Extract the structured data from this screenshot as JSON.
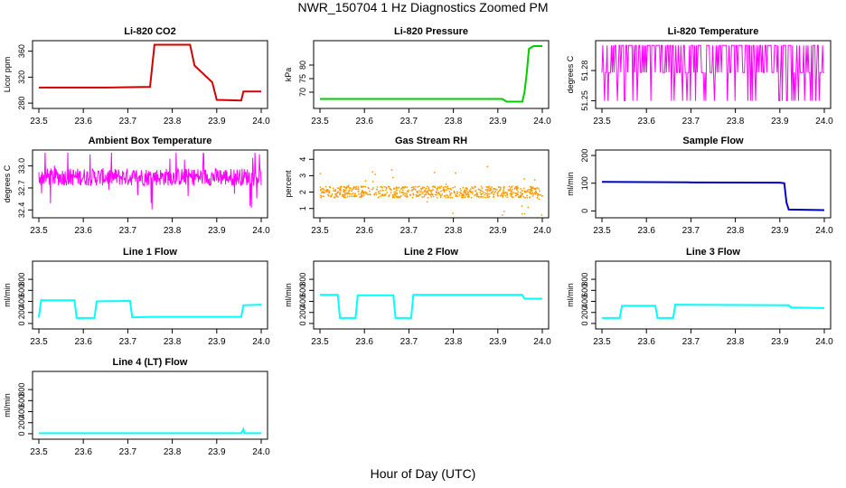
{
  "figure": {
    "title": "NWR_150704  1 Hz Diagnostics Zoomed PM",
    "xlabel": "Hour of Day (UTC)"
  },
  "chart_data": [
    {
      "id": "co2",
      "type": "line",
      "title": "Li-820 CO2",
      "ylabel": "Licor ppm",
      "color": "#d00000",
      "style": "step",
      "xlim": [
        23.5,
        24.0
      ],
      "ylim": [
        276,
        372
      ],
      "xticks": [
        "23.5",
        "23.6",
        "23.7",
        "23.8",
        "23.9",
        "24.0"
      ],
      "yticks": [
        "280",
        "320",
        "360"
      ],
      "series": [
        {
          "x": [
            23.5,
            23.6,
            23.65,
            23.75,
            23.76,
            23.84,
            23.85,
            23.89,
            23.9,
            23.955,
            23.96,
            24.0
          ],
          "y": [
            304,
            304,
            304,
            305,
            370,
            370,
            338,
            312,
            285,
            284,
            298,
            298
          ]
        }
      ]
    },
    {
      "id": "pressure",
      "type": "line",
      "title": "Li-820 Pressure",
      "ylabel": "kPa",
      "color": "#00cc00",
      "style": "step",
      "xlim": [
        23.5,
        24.0
      ],
      "ylim": [
        65,
        88
      ],
      "xticks": [
        "23.5",
        "23.6",
        "23.7",
        "23.8",
        "23.9",
        "24.0"
      ],
      "yticks": [
        "70",
        "75",
        "80"
      ],
      "series": [
        {
          "x": [
            23.5,
            23.91,
            23.92,
            23.955,
            23.96,
            23.965,
            23.97,
            23.98,
            24.0
          ],
          "y": [
            67.5,
            67.5,
            66.5,
            66.5,
            70,
            77,
            86,
            87,
            87
          ]
        }
      ]
    },
    {
      "id": "licor_temp",
      "type": "line",
      "title": "Li-820 Temperature",
      "ylabel": "degrees C",
      "color": "#ff00ff",
      "style": "noise",
      "xlim": [
        23.5,
        24.0
      ],
      "ylim": [
        51.245,
        51.307
      ],
      "xticks": [
        "23.5",
        "23.6",
        "23.7",
        "23.8",
        "23.9",
        "24.0"
      ],
      "yticks": [
        "51.25",
        "51.28"
      ],
      "series": [
        {
          "levels": [
            51.25,
            51.278,
            51.305
          ],
          "x": [
            23.5,
            24.0
          ]
        }
      ]
    },
    {
      "id": "box_temp",
      "type": "line",
      "title": "Ambient Box Temperature",
      "ylabel": "degrees C",
      "color": "#ff00ff",
      "style": "noise",
      "xlim": [
        23.5,
        24.0
      ],
      "ylim": [
        32.33,
        33.18
      ],
      "xticks": [
        "23.5",
        "23.6",
        "23.7",
        "23.8",
        "23.9",
        "24.0"
      ],
      "yticks": [
        "32.4",
        "32.7",
        "33.0"
      ],
      "series": [
        {
          "center": 32.85,
          "spread": 0.12,
          "x": [
            23.5,
            24.0
          ]
        }
      ]
    },
    {
      "id": "rh",
      "type": "scatter",
      "title": "Gas Stream RH",
      "ylabel": "percent",
      "color": "#ff9900",
      "style": "noise",
      "xlim": [
        23.5,
        24.0
      ],
      "ylim": [
        0.6,
        4.4
      ],
      "xticks": [
        "23.5",
        "23.6",
        "23.7",
        "23.8",
        "23.9",
        "24.0"
      ],
      "yticks": [
        "1",
        "2",
        "3",
        "4"
      ],
      "series": [
        {
          "center": 2.0,
          "spread": 0.35,
          "x": [
            23.5,
            24.0
          ]
        }
      ]
    },
    {
      "id": "sample_flow",
      "type": "line",
      "title": "Sample Flow",
      "ylabel": "ml/min",
      "color": "#0000cc",
      "style": "step",
      "xlim": [
        23.5,
        24.0
      ],
      "ylim": [
        -15,
        210
      ],
      "xticks": [
        "23.5",
        "23.6",
        "23.7",
        "23.8",
        "23.9",
        "24.0"
      ],
      "yticks": [
        "0",
        "100",
        "200"
      ],
      "series": [
        {
          "x": [
            23.5,
            23.7,
            23.9,
            23.91,
            23.915,
            23.92,
            24.0
          ],
          "y": [
            105,
            103,
            102,
            100,
            30,
            5,
            3
          ]
        }
      ]
    },
    {
      "id": "line1",
      "type": "line",
      "title": "Line 1 Flow",
      "ylabel": "ml/min",
      "color": "#00ffff",
      "style": "step",
      "xlim": [
        23.5,
        24.0
      ],
      "ylim": [
        -50,
        1080
      ],
      "xticks": [
        "23.5",
        "23.6",
        "23.7",
        "23.8",
        "23.9",
        "24.0"
      ],
      "yticks": [
        "0",
        "200",
        "400",
        "600",
        "800"
      ],
      "series": [
        {
          "x": [
            23.5,
            23.505,
            23.58,
            23.585,
            23.625,
            23.63,
            23.705,
            23.71,
            23.75,
            23.955,
            23.96,
            24.0
          ],
          "y": [
            110,
            420,
            420,
            100,
            100,
            400,
            410,
            110,
            120,
            120,
            330,
            340
          ]
        }
      ]
    },
    {
      "id": "line2",
      "type": "line",
      "title": "Line 2 Flow",
      "ylabel": "ml/min",
      "color": "#00ffff",
      "style": "step",
      "xlim": [
        23.5,
        24.0
      ],
      "ylim": [
        -50,
        1080
      ],
      "xticks": [
        "23.5",
        "23.6",
        "23.7",
        "23.8",
        "23.9",
        "24.0"
      ],
      "yticks": [
        "0",
        "200",
        "400",
        "600",
        "800"
      ],
      "series": [
        {
          "x": [
            23.5,
            23.54,
            23.545,
            23.58,
            23.585,
            23.665,
            23.67,
            23.705,
            23.71,
            23.955,
            23.96,
            24.0
          ],
          "y": [
            520,
            520,
            100,
            100,
            510,
            510,
            100,
            100,
            520,
            520,
            450,
            450
          ]
        }
      ]
    },
    {
      "id": "line3",
      "type": "line",
      "title": "Line 3 Flow",
      "ylabel": "ml/min",
      "color": "#00ffff",
      "style": "step",
      "xlim": [
        23.5,
        24.0
      ],
      "ylim": [
        -50,
        1080
      ],
      "xticks": [
        "23.5",
        "23.6",
        "23.7",
        "23.8",
        "23.9",
        "24.0"
      ],
      "yticks": [
        "0",
        "200",
        "400",
        "600",
        "800"
      ],
      "series": [
        {
          "x": [
            23.5,
            23.505,
            23.54,
            23.545,
            23.62,
            23.625,
            23.66,
            23.665,
            23.92,
            23.925,
            24.0
          ],
          "y": [
            100,
            100,
            100,
            320,
            320,
            100,
            100,
            340,
            330,
            290,
            280
          ]
        }
      ]
    },
    {
      "id": "line4",
      "type": "line",
      "title": "Line 4 (LT) Flow",
      "ylabel": "ml/min",
      "color": "#00ffff",
      "style": "step",
      "xlim": [
        23.5,
        24.0
      ],
      "ylim": [
        -50,
        1080
      ],
      "xticks": [
        "23.5",
        "23.6",
        "23.7",
        "23.8",
        "23.9",
        "24.0"
      ],
      "yticks": [
        "0",
        "200",
        "400",
        "600",
        "800"
      ],
      "series": [
        {
          "x": [
            23.5,
            23.955,
            23.96,
            23.962,
            24.0
          ],
          "y": [
            10,
            10,
            80,
            10,
            10
          ]
        }
      ]
    }
  ]
}
